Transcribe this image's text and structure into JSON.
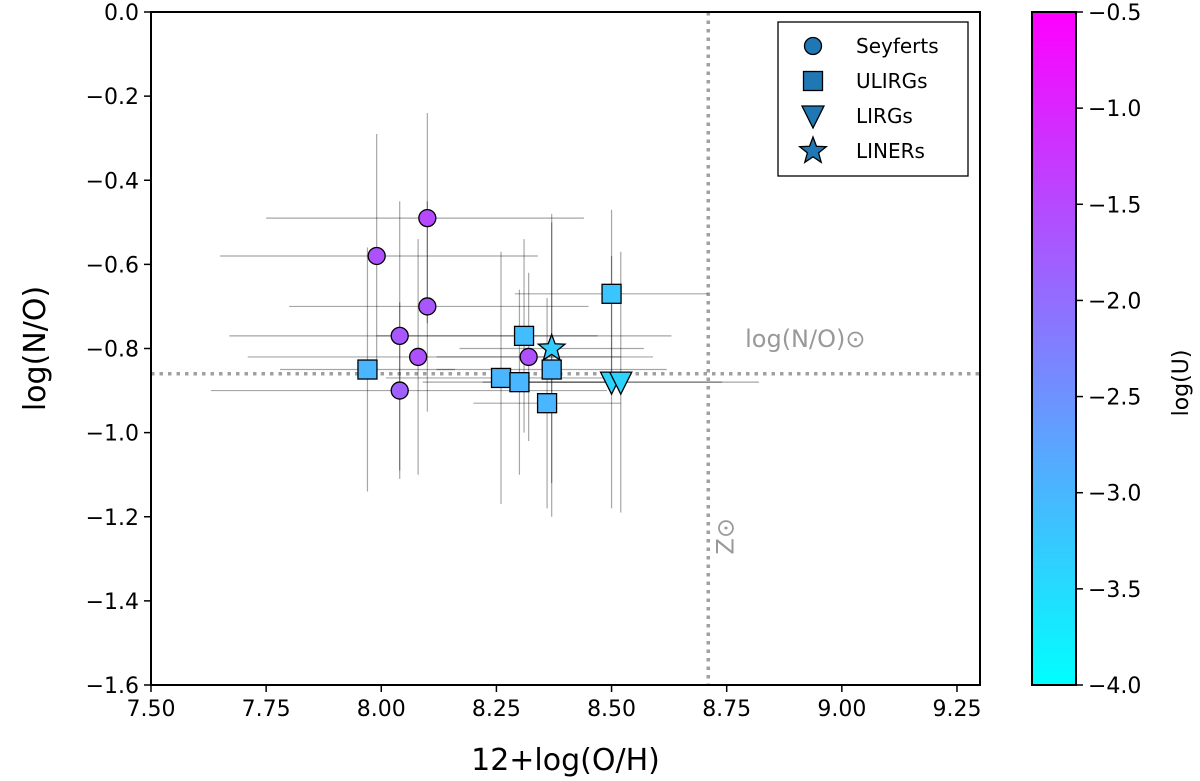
{
  "chart_data": {
    "type": "scatter",
    "title": "",
    "xlabel": "12+log(O/H)",
    "ylabel": "log(N/O)",
    "xlim": [
      7.5,
      9.3
    ],
    "ylim": [
      -1.6,
      0.0
    ],
    "x_ticks": [
      "7.50",
      "7.75",
      "8.00",
      "8.25",
      "8.50",
      "8.75",
      "9.00",
      "9.25"
    ],
    "y_ticks": [
      "0.0",
      "−0.2",
      "−0.4",
      "−0.6",
      "−0.8",
      "−1.0",
      "−1.2",
      "−1.4",
      "−1.6"
    ],
    "colorbar": {
      "label": "log(U)",
      "range": [
        -4.0,
        -0.5
      ],
      "ticks": [
        "−0.5",
        "−1.0",
        "−1.5",
        "−2.0",
        "−2.5",
        "−3.0",
        "−3.5",
        "−4.0"
      ],
      "colors": [
        "#00ffff",
        "#ff00ff"
      ]
    },
    "reference_lines": {
      "solar_oh": {
        "x": 8.71,
        "label": "Z⊙"
      },
      "solar_no": {
        "y": -0.86,
        "label": "log(N/O)⊙"
      }
    },
    "legend": [
      {
        "label": "Seyferts",
        "marker": "circle"
      },
      {
        "label": "ULIRGs",
        "marker": "square"
      },
      {
        "label": "LIRGs",
        "marker": "triangle-down"
      },
      {
        "label": "LINERs",
        "marker": "star"
      }
    ],
    "series": [
      {
        "name": "Seyferts",
        "marker": "circle",
        "points": [
          {
            "x": 8.1,
            "y": -0.49,
            "logU": -1.5,
            "xerr": [
              0.35,
              0.34
            ],
            "yerr": [
              0.25,
              0.25
            ]
          },
          {
            "x": 7.99,
            "y": -0.58,
            "logU": -1.6,
            "xerr": [
              0.34,
              0.35
            ],
            "yerr": [
              0.29,
              0.29
            ]
          },
          {
            "x": 8.1,
            "y": -0.7,
            "logU": -1.7,
            "xerr": [
              0.3,
              0.35
            ],
            "yerr": [
              0.25,
              0.25
            ]
          },
          {
            "x": 8.04,
            "y": -0.77,
            "logU": -1.7,
            "xerr": [
              0.37,
              0.43
            ],
            "yerr": [
              0.32,
              0.32
            ]
          },
          {
            "x": 8.08,
            "y": -0.82,
            "logU": -1.6,
            "xerr": [
              0.37,
              0.51
            ],
            "yerr": [
              0.28,
              0.28
            ]
          },
          {
            "x": 8.04,
            "y": -0.9,
            "logU": -1.8,
            "xerr": [
              0.41,
              0.45
            ],
            "yerr": [
              0.21,
              0.21
            ]
          },
          {
            "x": 8.32,
            "y": -0.82,
            "logU": -1.6,
            "xerr": [
              0.2,
              0.2
            ],
            "yerr": [
              0.2,
              0.2
            ]
          }
        ]
      },
      {
        "name": "ULIRGs",
        "marker": "square",
        "points": [
          {
            "x": 8.5,
            "y": -0.67,
            "logU": -3.2,
            "xerr": [
              0.21,
              0.21
            ],
            "yerr": [
              0.2,
              0.2
            ]
          },
          {
            "x": 8.31,
            "y": -0.77,
            "logU": -3.1,
            "xerr": [
              0.32,
              0.32
            ],
            "yerr": [
              0.23,
              0.23
            ]
          },
          {
            "x": 7.97,
            "y": -0.85,
            "logU": -3.0,
            "xerr": [
              0.19,
              0.19
            ],
            "yerr": [
              0.29,
              0.29
            ]
          },
          {
            "x": 8.26,
            "y": -0.87,
            "logU": -3.0,
            "xerr": [
              0.25,
              0.25
            ],
            "yerr": [
              0.3,
              0.3
            ]
          },
          {
            "x": 8.3,
            "y": -0.88,
            "logU": -3.0,
            "xerr": [
              0.21,
              0.21
            ],
            "yerr": [
              0.22,
              0.22
            ]
          },
          {
            "x": 8.37,
            "y": -0.85,
            "logU": -3.0,
            "xerr": [
              0.25,
              0.25
            ],
            "yerr": [
              0.35,
              0.35
            ]
          },
          {
            "x": 8.36,
            "y": -0.93,
            "logU": -3.0,
            "xerr": [
              0.16,
              0.16
            ],
            "yerr": [
              0.25,
              0.25
            ]
          }
        ]
      },
      {
        "name": "LIRGs",
        "marker": "triangle-down",
        "points": [
          {
            "x": 8.5,
            "y": -0.88,
            "logU": -3.4,
            "xerr": [
              0.24,
              0.24
            ],
            "yerr": [
              0.3,
              0.3
            ]
          },
          {
            "x": 8.52,
            "y": -0.88,
            "logU": -3.4,
            "xerr": [
              0.3,
              0.3
            ],
            "yerr": [
              0.31,
              0.31
            ]
          }
        ]
      },
      {
        "name": "LINERs",
        "marker": "star",
        "points": [
          {
            "x": 8.37,
            "y": -0.8,
            "logU": -3.3,
            "xerr": [
              0.2,
              0.2
            ],
            "yerr": [
              0.32,
              0.32
            ]
          }
        ]
      }
    ]
  }
}
